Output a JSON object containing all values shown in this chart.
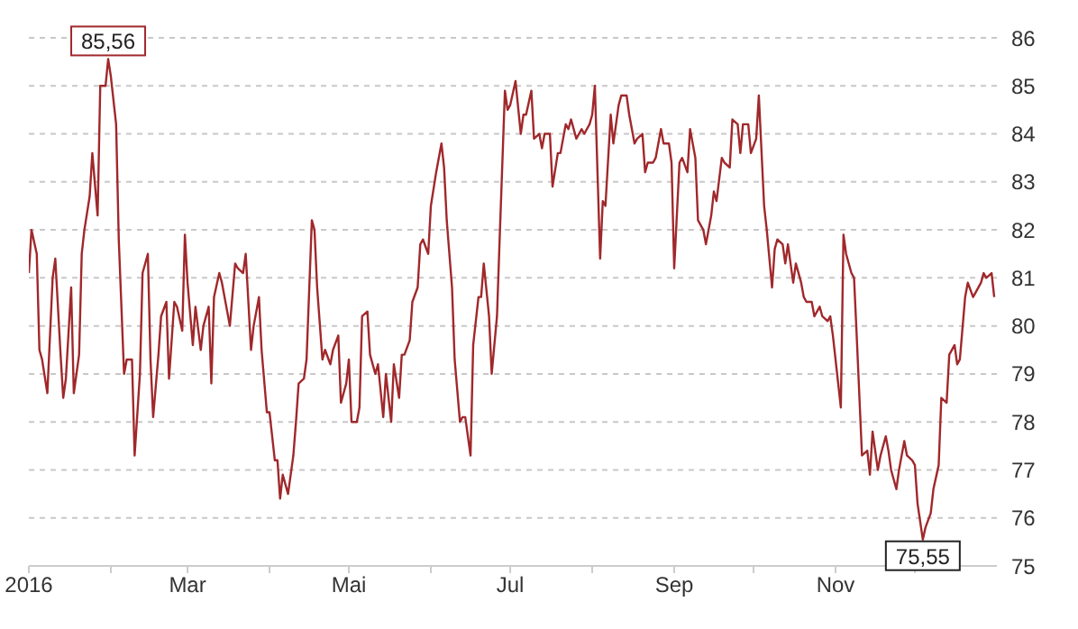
{
  "chart_data": {
    "type": "line",
    "x": [
      "2016-01-01",
      "2016-01-02",
      "2016-01-04",
      "2016-01-05",
      "2016-01-06",
      "2016-01-08",
      "2016-01-10",
      "2016-01-11",
      "2016-01-13",
      "2016-01-14",
      "2016-01-15",
      "2016-01-17",
      "2016-01-18",
      "2016-01-20",
      "2016-01-21",
      "2016-01-22",
      "2016-01-24",
      "2016-01-25",
      "2016-01-27",
      "2016-01-28",
      "2016-01-30",
      "2016-01-31",
      "2016-02-01",
      "2016-02-03",
      "2016-02-04",
      "2016-02-06",
      "2016-02-07",
      "2016-02-09",
      "2016-02-10",
      "2016-02-12",
      "2016-02-13",
      "2016-02-15",
      "2016-02-16",
      "2016-02-17",
      "2016-02-19",
      "2016-02-20",
      "2016-02-22",
      "2016-02-23",
      "2016-02-25",
      "2016-02-26",
      "2016-02-28",
      "2016-02-29",
      "2016-03-01",
      "2016-03-03",
      "2016-03-04",
      "2016-03-06",
      "2016-03-07",
      "2016-03-09",
      "2016-03-10",
      "2016-03-11",
      "2016-03-13",
      "2016-03-14",
      "2016-03-16",
      "2016-03-17",
      "2016-03-19",
      "2016-03-20",
      "2016-03-22",
      "2016-03-23",
      "2016-03-25",
      "2016-03-26",
      "2016-03-28",
      "2016-03-29",
      "2016-03-31",
      "2016-04-01",
      "2016-04-03",
      "2016-04-04",
      "2016-04-05",
      "2016-04-06",
      "2016-04-08",
      "2016-04-10",
      "2016-04-11",
      "2016-04-12",
      "2016-04-14",
      "2016-04-15",
      "2016-04-17",
      "2016-04-18",
      "2016-04-19",
      "2016-04-21",
      "2016-04-22",
      "2016-04-24",
      "2016-04-25",
      "2016-04-27",
      "2016-04-28",
      "2016-04-30",
      "2016-05-01",
      "2016-05-02",
      "2016-05-04",
      "2016-05-05",
      "2016-05-06",
      "2016-05-08",
      "2016-05-09",
      "2016-05-11",
      "2016-05-12",
      "2016-05-14",
      "2016-05-15",
      "2016-05-17",
      "2016-05-18",
      "2016-05-20",
      "2016-05-21",
      "2016-05-22",
      "2016-05-24",
      "2016-05-25",
      "2016-05-27",
      "2016-05-28",
      "2016-05-29",
      "2016-05-31",
      "2016-06-01",
      "2016-06-03",
      "2016-06-05",
      "2016-06-06",
      "2016-06-07",
      "2016-06-09",
      "2016-06-10",
      "2016-06-12",
      "2016-06-13",
      "2016-06-14",
      "2016-06-16",
      "2016-06-17",
      "2016-06-19",
      "2016-06-20",
      "2016-06-21",
      "2016-06-23",
      "2016-06-24",
      "2016-06-26",
      "2016-06-27",
      "2016-06-29",
      "2016-06-30",
      "2016-07-01",
      "2016-07-03",
      "2016-07-05",
      "2016-07-06",
      "2016-07-07",
      "2016-07-09",
      "2016-07-10",
      "2016-07-12",
      "2016-07-13",
      "2016-07-14",
      "2016-07-16",
      "2016-07-17",
      "2016-07-19",
      "2016-07-20",
      "2016-07-22",
      "2016-07-23",
      "2016-07-24",
      "2016-07-26",
      "2016-07-28",
      "2016-07-29",
      "2016-07-31",
      "2016-08-01",
      "2016-08-02",
      "2016-08-04",
      "2016-08-05",
      "2016-08-06",
      "2016-08-08",
      "2016-08-09",
      "2016-08-11",
      "2016-08-12",
      "2016-08-14",
      "2016-08-15",
      "2016-08-17",
      "2016-08-18",
      "2016-08-20",
      "2016-08-21",
      "2016-08-22",
      "2016-08-24",
      "2016-08-25",
      "2016-08-27",
      "2016-08-28",
      "2016-08-30",
      "2016-08-31",
      "2016-09-01",
      "2016-09-03",
      "2016-09-04",
      "2016-09-06",
      "2016-09-07",
      "2016-09-09",
      "2016-09-10",
      "2016-09-12",
      "2016-09-13",
      "2016-09-15",
      "2016-09-16",
      "2016-09-17",
      "2016-09-19",
      "2016-09-20",
      "2016-09-22",
      "2016-09-23",
      "2016-09-25",
      "2016-09-26",
      "2016-09-27",
      "2016-09-29",
      "2016-09-30",
      "2016-10-02",
      "2016-10-03",
      "2016-10-05",
      "2016-10-06",
      "2016-10-08",
      "2016-10-09",
      "2016-10-10",
      "2016-10-12",
      "2016-10-13",
      "2016-10-14",
      "2016-10-16",
      "2016-10-17",
      "2016-10-19",
      "2016-10-20",
      "2016-10-21",
      "2016-10-23",
      "2016-10-24",
      "2016-10-26",
      "2016-10-27",
      "2016-10-29",
      "2016-10-30",
      "2016-10-31",
      "2016-11-03",
      "2016-11-04",
      "2016-11-05",
      "2016-11-07",
      "2016-11-08",
      "2016-11-09",
      "2016-11-11",
      "2016-11-13",
      "2016-11-14",
      "2016-11-15",
      "2016-11-17",
      "2016-11-18",
      "2016-11-20",
      "2016-11-21",
      "2016-11-22",
      "2016-11-24",
      "2016-11-25",
      "2016-11-27",
      "2016-11-28",
      "2016-11-30",
      "2016-12-01",
      "2016-12-02",
      "2016-12-04",
      "2016-12-05",
      "2016-12-07",
      "2016-12-08",
      "2016-12-10",
      "2016-12-11",
      "2016-12-13",
      "2016-12-14",
      "2016-12-16",
      "2016-12-17",
      "2016-12-18",
      "2016-12-20",
      "2016-12-21",
      "2016-12-23",
      "2016-12-24",
      "2016-12-26",
      "2016-12-27",
      "2016-12-28",
      "2016-12-30",
      "2016-12-31"
    ],
    "series": [
      {
        "color": "#a0282b",
        "values": [
          81.1,
          82.0,
          81.5,
          79.5,
          79.3,
          78.6,
          81.0,
          81.4,
          79.4,
          78.5,
          78.9,
          80.8,
          78.6,
          79.4,
          81.5,
          82.0,
          82.7,
          83.6,
          82.3,
          85.0,
          85.0,
          85.56,
          85.2,
          84.2,
          81.8,
          79.0,
          79.3,
          79.3,
          77.3,
          79.0,
          81.1,
          81.5,
          79.3,
          78.1,
          79.4,
          80.2,
          80.5,
          78.9,
          80.5,
          80.4,
          79.9,
          81.9,
          80.9,
          79.6,
          80.4,
          79.5,
          80.0,
          80.4,
          78.8,
          80.6,
          81.1,
          80.9,
          80.3,
          80.0,
          81.3,
          81.2,
          81.1,
          81.5,
          79.5,
          80.0,
          80.6,
          79.5,
          78.2,
          78.2,
          77.2,
          77.2,
          76.4,
          76.9,
          76.5,
          77.3,
          78.0,
          78.8,
          78.9,
          79.3,
          82.2,
          82.0,
          80.8,
          79.3,
          79.5,
          79.2,
          79.5,
          79.8,
          78.4,
          78.8,
          79.3,
          78.0,
          78.0,
          78.3,
          80.2,
          80.3,
          79.4,
          79.0,
          79.2,
          78.1,
          79.0,
          78.0,
          79.2,
          78.5,
          79.4,
          79.4,
          79.7,
          80.5,
          80.8,
          81.7,
          81.8,
          81.5,
          82.5,
          83.2,
          83.8,
          83.3,
          82.2,
          80.8,
          79.3,
          78.0,
          78.1,
          78.1,
          77.3,
          79.6,
          80.6,
          80.6,
          81.3,
          80.2,
          79.0,
          80.2,
          81.8,
          84.9,
          84.5,
          84.6,
          85.1,
          84.0,
          84.4,
          84.4,
          84.9,
          83.9,
          84.0,
          83.7,
          84.0,
          84.0,
          82.9,
          83.6,
          83.6,
          84.2,
          84.1,
          84.3,
          83.9,
          84.1,
          84.0,
          84.2,
          84.4,
          85.0,
          81.4,
          82.6,
          82.5,
          84.4,
          83.8,
          84.6,
          84.8,
          84.8,
          84.4,
          83.8,
          83.9,
          84.0,
          83.2,
          83.4,
          83.4,
          83.5,
          84.1,
          83.8,
          83.8,
          83.4,
          81.2,
          83.4,
          83.5,
          83.2,
          84.1,
          83.5,
          82.2,
          82.0,
          81.7,
          82.3,
          82.8,
          82.6,
          83.5,
          83.4,
          83.3,
          84.3,
          84.2,
          83.6,
          84.2,
          84.2,
          83.6,
          83.9,
          84.8,
          82.5,
          82.0,
          80.8,
          81.6,
          81.8,
          81.7,
          81.3,
          81.7,
          80.9,
          81.3,
          80.9,
          80.6,
          80.5,
          80.5,
          80.2,
          80.4,
          80.2,
          80.1,
          80.2,
          79.8,
          78.3,
          81.9,
          81.5,
          81.1,
          81.0,
          79.8,
          77.3,
          77.4,
          76.9,
          77.8,
          77.0,
          77.3,
          77.7,
          77.4,
          77.0,
          76.6,
          77.0,
          77.6,
          77.3,
          77.2,
          77.1,
          76.3,
          75.55,
          75.8,
          76.1,
          76.6,
          77.1,
          78.5,
          78.4,
          79.4,
          79.6,
          79.2,
          79.3,
          80.6,
          80.9,
          80.6,
          80.7,
          80.9,
          81.1,
          81.0,
          81.1,
          80.6
        ]
      }
    ],
    "xlim": [
      "2016-01-01",
      "2017-01-01"
    ],
    "xticks": [
      {
        "value": "2016-01-01",
        "label": "2016"
      },
      {
        "value": "2016-02-01",
        "label": null
      },
      {
        "value": "2016-03-01",
        "label": "Mar"
      },
      {
        "value": "2016-04-01",
        "label": null
      },
      {
        "value": "2016-05-01",
        "label": "Mai"
      },
      {
        "value": "2016-06-01",
        "label": null
      },
      {
        "value": "2016-07-01",
        "label": "Jul"
      },
      {
        "value": "2016-08-01",
        "label": null
      },
      {
        "value": "2016-09-01",
        "label": "Sep"
      },
      {
        "value": "2016-10-01",
        "label": null
      },
      {
        "value": "2016-11-01",
        "label": "Nov"
      },
      {
        "value": "2016-12-01",
        "label": null
      }
    ],
    "ylim": [
      75,
      86
    ],
    "yticks": [
      75,
      76,
      77,
      78,
      79,
      80,
      81,
      82,
      83,
      84,
      85,
      86
    ],
    "grid": "y",
    "marker": "none",
    "line_style": "solid",
    "annotations": [
      {
        "text": "85,56",
        "x": "2016-01-31",
        "y": 85.56
      },
      {
        "text": "75,55",
        "x": "2016-12-04",
        "y": 75.55
      }
    ]
  }
}
